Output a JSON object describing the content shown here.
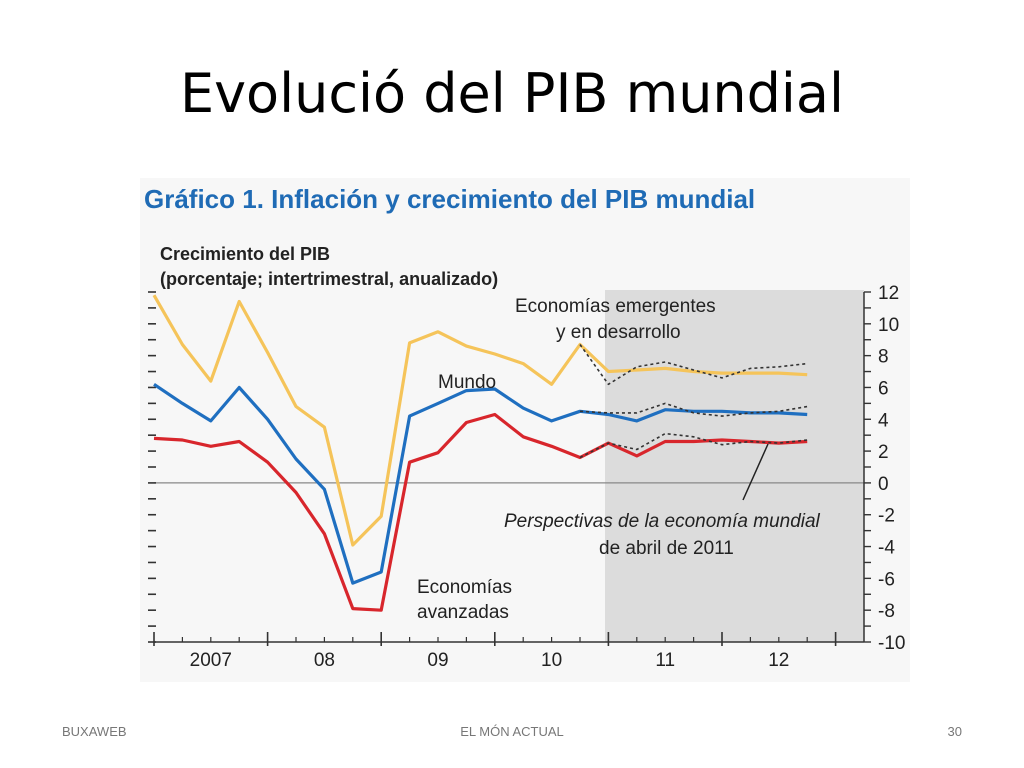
{
  "slide": {
    "title": "Evolució del PIB mundial",
    "footer_left": "BUXAWEB",
    "footer_center": "EL MÓN ACTUAL",
    "footer_right": "30"
  },
  "chart_data": {
    "type": "line",
    "title": "Gráfico 1. Inflación y crecimiento del PIB mundial",
    "ylabel_line1": "Crecimiento del PIB",
    "ylabel_line2": "(porcentaje; intertrimestral, anualizado)",
    "ylim": [
      -10,
      12
    ],
    "yticks": [
      12,
      10,
      8,
      6,
      4,
      2,
      0,
      -2,
      -4,
      -6,
      -8,
      -10
    ],
    "xticks": [
      {
        "label": "2007",
        "x": 2007.5
      },
      {
        "label": "08",
        "x": 2008.5
      },
      {
        "label": "09",
        "x": 2009.5
      },
      {
        "label": "10",
        "x": 2010.5
      },
      {
        "label": "11",
        "x": 2011.5
      },
      {
        "label": "12",
        "x": 2012.5
      }
    ],
    "xlim": [
      2007,
      2013.25
    ],
    "projection_start": 2010.97,
    "colors": {
      "emerging": "#f5c45a",
      "world": "#1f6fc0",
      "advanced": "#d8262c",
      "weo_forecast": "#333333",
      "shade": "#dcdcdc"
    },
    "series": [
      {
        "name": "Economías emergentes y en desarrollo",
        "key": "emerging",
        "x": [
          2007.0,
          2007.25,
          2007.5,
          2007.75,
          2008.0,
          2008.25,
          2008.5,
          2008.75,
          2009.0,
          2009.25,
          2009.5,
          2009.75,
          2010.0,
          2010.25,
          2010.5,
          2010.75,
          2011.0,
          2011.25,
          2011.5,
          2011.75,
          2012.0,
          2012.25,
          2012.5,
          2012.75
        ],
        "values": [
          11.8,
          8.7,
          6.4,
          11.4,
          8.2,
          4.8,
          3.5,
          -3.9,
          -2.1,
          8.8,
          9.5,
          8.6,
          8.1,
          7.5,
          6.2,
          8.7,
          7.0,
          7.1,
          7.2,
          7.0,
          6.9,
          6.9,
          6.9,
          6.8
        ]
      },
      {
        "name": "Mundo",
        "key": "world",
        "x": [
          2007.0,
          2007.25,
          2007.5,
          2007.75,
          2008.0,
          2008.25,
          2008.5,
          2008.75,
          2009.0,
          2009.25,
          2009.5,
          2009.75,
          2010.0,
          2010.25,
          2010.5,
          2010.75,
          2011.0,
          2011.25,
          2011.5,
          2011.75,
          2012.0,
          2012.25,
          2012.5,
          2012.75
        ],
        "values": [
          6.2,
          5.0,
          3.9,
          6.0,
          4.0,
          1.5,
          -0.4,
          -6.3,
          -5.6,
          4.2,
          5.0,
          5.8,
          5.9,
          4.7,
          3.9,
          4.5,
          4.3,
          3.9,
          4.6,
          4.5,
          4.5,
          4.4,
          4.4,
          4.3
        ]
      },
      {
        "name": "Economías avanzadas",
        "key": "advanced",
        "x": [
          2007.0,
          2007.25,
          2007.5,
          2007.75,
          2008.0,
          2008.25,
          2008.5,
          2008.75,
          2009.0,
          2009.25,
          2009.5,
          2009.75,
          2010.0,
          2010.25,
          2010.5,
          2010.75,
          2011.0,
          2011.25,
          2011.5,
          2011.75,
          2012.0,
          2012.25,
          2012.5,
          2012.75
        ],
        "values": [
          2.8,
          2.7,
          2.3,
          2.6,
          1.3,
          -0.6,
          -3.2,
          -7.9,
          -8.0,
          1.3,
          1.9,
          3.8,
          4.3,
          2.9,
          2.3,
          1.6,
          2.5,
          1.7,
          2.6,
          2.6,
          2.7,
          2.6,
          2.5,
          2.6
        ]
      },
      {
        "name": "Perspectivas de la economía mundial de abril de 2011",
        "key": "weo_emerging",
        "x": [
          2010.75,
          2011.0,
          2011.25,
          2011.5,
          2011.75,
          2012.0,
          2012.25,
          2012.5,
          2012.75
        ],
        "values": [
          8.7,
          6.2,
          7.3,
          7.6,
          7.1,
          6.6,
          7.2,
          7.3,
          7.5
        ]
      },
      {
        "key": "weo_world",
        "x": [
          2010.75,
          2011.0,
          2011.25,
          2011.5,
          2011.75,
          2012.0,
          2012.25,
          2012.5,
          2012.75
        ],
        "values": [
          4.5,
          4.4,
          4.4,
          5.0,
          4.4,
          4.2,
          4.4,
          4.5,
          4.8
        ]
      },
      {
        "key": "weo_advanced",
        "x": [
          2010.75,
          2011.0,
          2011.25,
          2011.5,
          2011.75,
          2012.0,
          2012.25,
          2012.5,
          2012.75
        ],
        "values": [
          1.6,
          2.5,
          2.1,
          3.1,
          2.9,
          2.4,
          2.6,
          2.5,
          2.7
        ]
      }
    ],
    "annotations": {
      "emerging_line1": "Economías emergentes",
      "emerging_line2": "y en desarrollo",
      "world": "Mundo",
      "advanced_line1": "Economías",
      "advanced_line2": "avanzadas",
      "weo_line1": "Perspectivas de la economía mundial",
      "weo_line2": "de abril de 2011"
    }
  }
}
